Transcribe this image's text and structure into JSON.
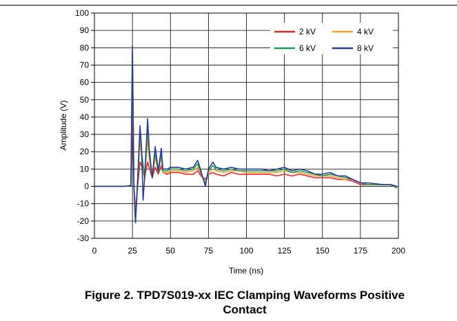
{
  "chart_data": {
    "type": "line",
    "title": "",
    "xlabel": "Time (ns)",
    "ylabel": "Amplitude (V)",
    "xlim": [
      0,
      200
    ],
    "ylim": [
      -30,
      100
    ],
    "xticks": [
      0,
      25,
      50,
      75,
      100,
      125,
      150,
      175,
      200
    ],
    "yticks": [
      -30,
      -20,
      -10,
      0,
      10,
      20,
      30,
      40,
      50,
      60,
      70,
      80,
      90,
      100
    ],
    "grid": true,
    "legend_position": "top-right",
    "series": [
      {
        "name": "2 kV",
        "color": "#e8262b",
        "points": [
          [
            0,
            0
          ],
          [
            20,
            0
          ],
          [
            24,
            0.5
          ],
          [
            25,
            46
          ],
          [
            26,
            0
          ],
          [
            27,
            -13
          ],
          [
            28,
            -4
          ],
          [
            30,
            14
          ],
          [
            31,
            12
          ],
          [
            33,
            5
          ],
          [
            35,
            14
          ],
          [
            36,
            11
          ],
          [
            38,
            5
          ],
          [
            40,
            11
          ],
          [
            42,
            7
          ],
          [
            44,
            12
          ],
          [
            45,
            8
          ],
          [
            48,
            7
          ],
          [
            50,
            8
          ],
          [
            55,
            8
          ],
          [
            60,
            7
          ],
          [
            65,
            7
          ],
          [
            68,
            9
          ],
          [
            70,
            6
          ],
          [
            73,
            4
          ],
          [
            75,
            7
          ],
          [
            78,
            8
          ],
          [
            80,
            7
          ],
          [
            85,
            6
          ],
          [
            90,
            8
          ],
          [
            95,
            7
          ],
          [
            100,
            7
          ],
          [
            105,
            7
          ],
          [
            110,
            7
          ],
          [
            115,
            7
          ],
          [
            120,
            6
          ],
          [
            125,
            7
          ],
          [
            130,
            6
          ],
          [
            135,
            7
          ],
          [
            140,
            6
          ],
          [
            145,
            5
          ],
          [
            150,
            5
          ],
          [
            155,
            5
          ],
          [
            160,
            4
          ],
          [
            165,
            4
          ],
          [
            170,
            3
          ],
          [
            175,
            1
          ],
          [
            180,
            1
          ],
          [
            190,
            1
          ],
          [
            195,
            1
          ],
          [
            199,
            -1
          ]
        ]
      },
      {
        "name": "4 kV",
        "color": "#f5a02a",
        "points": [
          [
            0,
            0
          ],
          [
            20,
            0
          ],
          [
            24,
            0.5
          ],
          [
            25,
            70
          ],
          [
            26,
            0
          ],
          [
            27,
            -18
          ],
          [
            28,
            -3
          ],
          [
            30,
            26
          ],
          [
            31,
            17
          ],
          [
            33,
            4
          ],
          [
            35,
            28
          ],
          [
            36,
            16
          ],
          [
            38,
            5
          ],
          [
            40,
            17
          ],
          [
            42,
            8
          ],
          [
            44,
            17
          ],
          [
            45,
            8
          ],
          [
            48,
            8
          ],
          [
            50,
            9
          ],
          [
            55,
            9
          ],
          [
            60,
            8
          ],
          [
            65,
            9
          ],
          [
            68,
            11
          ],
          [
            70,
            7
          ],
          [
            73,
            2
          ],
          [
            75,
            8
          ],
          [
            78,
            10
          ],
          [
            80,
            9
          ],
          [
            85,
            8
          ],
          [
            90,
            9
          ],
          [
            95,
            9
          ],
          [
            100,
            8
          ],
          [
            105,
            8
          ],
          [
            110,
            8
          ],
          [
            115,
            8
          ],
          [
            120,
            8
          ],
          [
            125,
            9
          ],
          [
            130,
            8
          ],
          [
            135,
            8
          ],
          [
            140,
            7
          ],
          [
            145,
            6
          ],
          [
            150,
            6
          ],
          [
            155,
            6
          ],
          [
            160,
            5
          ],
          [
            165,
            4
          ],
          [
            170,
            4
          ],
          [
            175,
            2
          ],
          [
            180,
            1
          ],
          [
            190,
            1
          ],
          [
            195,
            1
          ],
          [
            199,
            -1
          ]
        ]
      },
      {
        "name": "6 kV",
        "color": "#1a9a5b",
        "points": [
          [
            0,
            0
          ],
          [
            20,
            0
          ],
          [
            24,
            0.5
          ],
          [
            25,
            76
          ],
          [
            26,
            0
          ],
          [
            27,
            -20
          ],
          [
            28,
            -5
          ],
          [
            30,
            32
          ],
          [
            31,
            20
          ],
          [
            33,
            5
          ],
          [
            35,
            35
          ],
          [
            36,
            20
          ],
          [
            38,
            5
          ],
          [
            40,
            20
          ],
          [
            42,
            8
          ],
          [
            44,
            20
          ],
          [
            45,
            9
          ],
          [
            48,
            9
          ],
          [
            50,
            10
          ],
          [
            55,
            10
          ],
          [
            60,
            9
          ],
          [
            65,
            10
          ],
          [
            68,
            13
          ],
          [
            70,
            8
          ],
          [
            73,
            1
          ],
          [
            75,
            9
          ],
          [
            78,
            12
          ],
          [
            80,
            10
          ],
          [
            85,
            9
          ],
          [
            90,
            10
          ],
          [
            95,
            9
          ],
          [
            100,
            9
          ],
          [
            105,
            9
          ],
          [
            110,
            9
          ],
          [
            115,
            9
          ],
          [
            120,
            9
          ],
          [
            125,
            10
          ],
          [
            130,
            8
          ],
          [
            135,
            9
          ],
          [
            140,
            8
          ],
          [
            145,
            7
          ],
          [
            150,
            6
          ],
          [
            155,
            7
          ],
          [
            160,
            6
          ],
          [
            165,
            5
          ],
          [
            170,
            4
          ],
          [
            175,
            2
          ],
          [
            180,
            1
          ],
          [
            190,
            1
          ],
          [
            195,
            1
          ],
          [
            199,
            -1
          ]
        ]
      },
      {
        "name": "8 kV",
        "color": "#2a3a8f",
        "points": [
          [
            0,
            0
          ],
          [
            20,
            0
          ],
          [
            24,
            0.5
          ],
          [
            25,
            81
          ],
          [
            26,
            0
          ],
          [
            27,
            -21
          ],
          [
            28,
            -5
          ],
          [
            30,
            35
          ],
          [
            31,
            22
          ],
          [
            32,
            -8
          ],
          [
            33,
            5
          ],
          [
            35,
            39
          ],
          [
            36,
            22
          ],
          [
            38,
            5
          ],
          [
            40,
            23
          ],
          [
            42,
            9
          ],
          [
            44,
            22
          ],
          [
            45,
            10
          ],
          [
            48,
            10
          ],
          [
            50,
            11
          ],
          [
            55,
            11
          ],
          [
            60,
            10
          ],
          [
            65,
            11
          ],
          [
            68,
            15
          ],
          [
            70,
            9
          ],
          [
            73,
            0
          ],
          [
            75,
            10
          ],
          [
            78,
            14
          ],
          [
            80,
            11
          ],
          [
            85,
            10
          ],
          [
            90,
            11
          ],
          [
            95,
            10
          ],
          [
            100,
            10
          ],
          [
            105,
            10
          ],
          [
            110,
            10
          ],
          [
            115,
            9
          ],
          [
            120,
            10
          ],
          [
            125,
            11
          ],
          [
            130,
            9
          ],
          [
            135,
            10
          ],
          [
            140,
            9
          ],
          [
            145,
            7
          ],
          [
            150,
            7
          ],
          [
            155,
            8
          ],
          [
            160,
            6
          ],
          [
            165,
            6
          ],
          [
            170,
            4
          ],
          [
            175,
            2
          ],
          [
            180,
            2
          ],
          [
            190,
            1
          ],
          [
            195,
            1
          ],
          [
            199,
            0
          ]
        ]
      }
    ]
  },
  "caption": {
    "line1": "Figure 2. TPD7S019-xx IEC Clamping Waveforms Positive",
    "line2": "Contact"
  }
}
